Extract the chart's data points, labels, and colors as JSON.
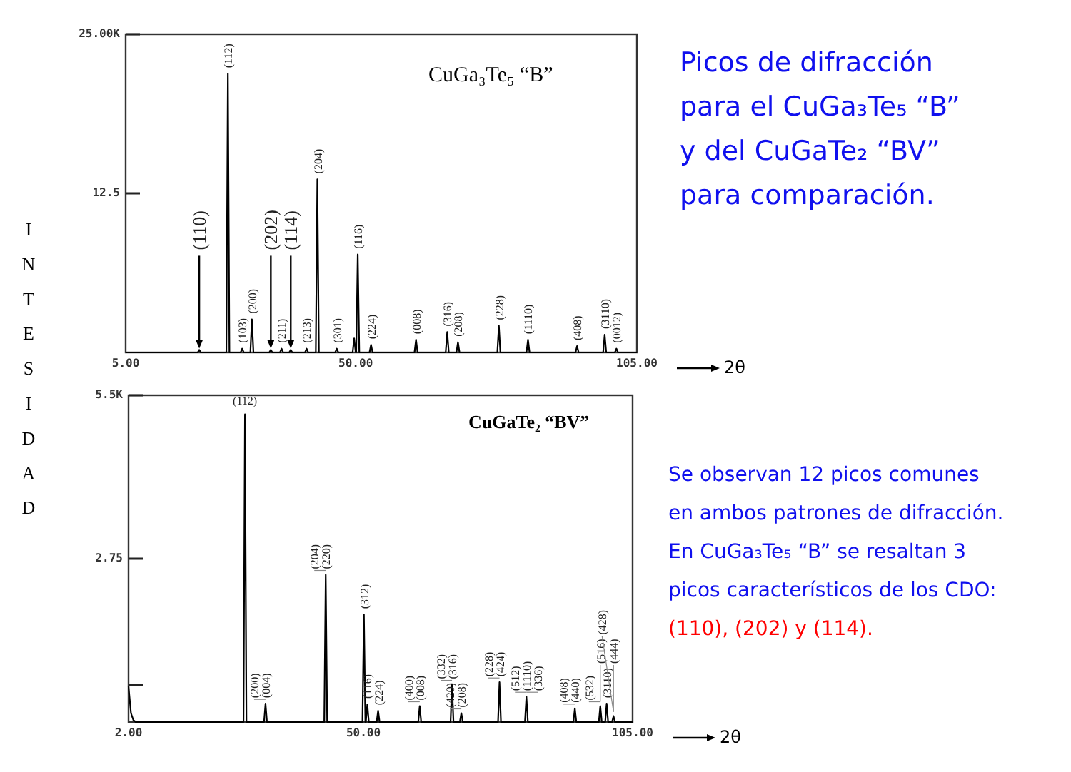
{
  "chart_data": [
    {
      "type": "line",
      "title": "CuGa₃Te₅ “B”",
      "xlabel": "2θ",
      "ylabel": "INTESIDAD",
      "xlim": [
        5,
        105
      ],
      "xticks": [
        {
          "value": 5,
          "label": "5.00"
        },
        {
          "value": 50,
          "label": "50.00"
        },
        {
          "value": 105,
          "label": "105.00"
        }
      ],
      "ylim": [
        0,
        25
      ],
      "yticks": [
        {
          "value": 25,
          "label": "25.00K"
        },
        {
          "value": 12.5,
          "label": "12.5"
        }
      ],
      "grid": false,
      "series": [
        {
          "color": "#000000",
          "x": [
            5,
            19.1,
            19.4,
            19.7,
            24.7,
            25,
            25.3,
            27.5,
            27.8,
            28.1,
            29.4,
            29.7,
            30,
            33.1,
            33.4,
            33.7,
            35.2,
            35.5,
            35.8,
            37,
            37.3,
            37.6,
            40.1,
            40.4,
            40.7,
            42.2,
            42.5,
            42.8,
            46,
            46.3,
            46.6,
            49.4,
            49.7,
            50,
            50.1,
            50.4,
            50.7,
            52.7,
            53,
            53.3,
            61.5,
            61.8,
            62.1,
            67.6,
            67.9,
            68.2,
            69.7,
            70,
            70.3,
            77.7,
            78,
            78.3,
            83.4,
            83.7,
            84,
            93,
            93.3,
            93.6,
            98.4,
            98.7,
            99,
            100.7,
            101,
            101.3,
            105
          ],
          "values": [
            0,
            0,
            0.2,
            0,
            0,
            21.9,
            0,
            0,
            0.3,
            0,
            0,
            2.6,
            0,
            0,
            0.2,
            0,
            0,
            0.3,
            0,
            0,
            0.2,
            0,
            0,
            0.3,
            0,
            0,
            13.6,
            0,
            0,
            0.3,
            0,
            0,
            1.1,
            0,
            0,
            7.7,
            0,
            0,
            0.6,
            0,
            0,
            1,
            0,
            0,
            1.6,
            0,
            0,
            0.8,
            0,
            0,
            2.1,
            0,
            0,
            1,
            0,
            0,
            0.5,
            0,
            0,
            1.4,
            0,
            0,
            0.3,
            0,
            0
          ]
        }
      ],
      "annotations": [
        {
          "text": "(110)",
          "x": 19.4,
          "y": 0.2
        },
        {
          "text": "(112)",
          "x": 25,
          "y": 21.9
        },
        {
          "text": "(103)",
          "x": 27.8,
          "y": 0.3
        },
        {
          "text": "(200)",
          "x": 29.7,
          "y": 2.6
        },
        {
          "text": "(202)",
          "x": 33.4,
          "y": 0.2
        },
        {
          "text": "(211)",
          "x": 35.5,
          "y": 0.3
        },
        {
          "text": "(114)",
          "x": 37.3,
          "y": 0.2
        },
        {
          "text": "(213)",
          "x": 40.4,
          "y": 0.3
        },
        {
          "text": "(204)",
          "x": 42.5,
          "y": 13.6
        },
        {
          "text": "(301)",
          "x": 46.3,
          "y": 0.3
        },
        {
          "text": "(116)",
          "x": 50.4,
          "y": 7.7
        },
        {
          "text": "(224)",
          "x": 53,
          "y": 0.6
        },
        {
          "text": "(008)",
          "x": 61.8,
          "y": 1
        },
        {
          "text": "(316)",
          "x": 67.9,
          "y": 1.6
        },
        {
          "text": "(208)",
          "x": 70,
          "y": 0.8
        },
        {
          "text": "(228)",
          "x": 78,
          "y": 2.1
        },
        {
          "text": "(1110)",
          "x": 83.7,
          "y": 1
        },
        {
          "text": "(408)",
          "x": 93.3,
          "y": 0.5
        },
        {
          "text": "(3110)",
          "x": 98.7,
          "y": 1.4
        },
        {
          "text": "(0012)",
          "x": 101,
          "y": 0.3
        },
        "Picos de difracción",
        "para el CuGa₃Te₅ “B”",
        "y del CuGaTe₂ “BV”",
        "para comparación."
      ]
    },
    {
      "type": "line",
      "title": "CuGaTe₂ “BV”",
      "xlabel": "2θ",
      "xlim": [
        2,
        105
      ],
      "xticks": [
        {
          "value": 2,
          "label": "2.00"
        },
        {
          "value": 50,
          "label": "50.00"
        },
        {
          "value": 105,
          "label": "105.00"
        }
      ],
      "ylim": [
        0,
        5.5
      ],
      "yticks": [
        {
          "value": 5.5,
          "label": "5.5K"
        },
        {
          "value": 2.75,
          "label": "2.75"
        },
        {
          "value": 0.63,
          "label": null
        }
      ],
      "grid": false,
      "series": [
        {
          "color": "#000000",
          "x": [
            2,
            2.5,
            3,
            3.5,
            25.5,
            25.8,
            26.1,
            29.7,
            30,
            30.3,
            42,
            42.3,
            42.6,
            49.8,
            50.1,
            50.4,
            50.5,
            50.8,
            51.1,
            52.7,
            53,
            53.3,
            61.2,
            61.5,
            61.8,
            67.8,
            68.1,
            68.4,
            69.7,
            70,
            70.3,
            77.5,
            77.8,
            78.1,
            83,
            83.3,
            83.6,
            92.9,
            93.2,
            93.5,
            98.1,
            98.4,
            98.7,
            99.4,
            99.7,
            100,
            100.8,
            101.1,
            101.4,
            105
          ],
          "values": [
            0.6,
            0.15,
            0.03,
            0,
            0,
            5.18,
            0,
            0,
            0.31,
            0,
            0,
            2.48,
            0,
            0,
            1.81,
            0,
            0,
            0.3,
            0,
            0,
            0.19,
            0,
            0,
            0.27,
            0,
            0,
            0.63,
            0,
            0,
            0.15,
            0,
            0,
            0.67,
            0,
            0,
            0.43,
            0,
            0,
            0.23,
            0,
            0,
            0.27,
            0,
            0,
            0.31,
            0,
            0,
            0.1,
            0,
            0
          ]
        }
      ],
      "annotations": [
        {
          "text": "(112)",
          "x": 25.8,
          "y": 5.18
        },
        {
          "text": "(004)",
          "x": 30,
          "y": 0.31
        },
        {
          "text": "(200)",
          "x": 30,
          "y": 0.31
        },
        {
          "text": "(220)",
          "x": 42.3,
          "y": 2.48
        },
        {
          "text": "(204)",
          "x": 42.3,
          "y": 2.48
        },
        {
          "text": "(116)",
          "x": 50.8,
          "y": 0.3
        },
        {
          "text": "(312)",
          "x": 50.1,
          "y": 1.81
        },
        {
          "text": "(224)",
          "x": 53,
          "y": 0.19
        },
        {
          "text": "(008)",
          "x": 61.5,
          "y": 0.27
        },
        {
          "text": "(400)",
          "x": 61.5,
          "y": 0.27
        },
        {
          "text": "(316)",
          "x": 68.1,
          "y": 0.63
        },
        {
          "text": "(332)",
          "x": 68.1,
          "y": 0.63
        },
        {
          "text": "(208)",
          "x": 70,
          "y": 0.15
        },
        {
          "text": "(420)",
          "x": 70,
          "y": 0.15
        },
        {
          "text": "(424)",
          "x": 77.8,
          "y": 0.67
        },
        {
          "text": "(228)",
          "x": 77.8,
          "y": 0.67
        },
        {
          "text": "(1110)",
          "x": 83.3,
          "y": 0.43
        },
        {
          "text": "(512)",
          "x": 83.3,
          "y": 0.43
        },
        {
          "text": "(336)",
          "x": 83.3,
          "y": 0.43
        },
        {
          "text": "(440)",
          "x": 93.2,
          "y": 0.23
        },
        {
          "text": "(408)",
          "x": 93.2,
          "y": 0.23
        },
        {
          "text": "(3110)",
          "x": 99.7,
          "y": 0.31
        },
        {
          "text": "(516)",
          "x": 98.4,
          "y": 0.27
        },
        {
          "text": "(532)",
          "x": 98.4,
          "y": 0.27
        },
        {
          "text": "(444)",
          "x": 101.1,
          "y": 0.1
        },
        {
          "text": "(428)",
          "x": 101.1,
          "y": 0.1
        },
        "Se observan 12 picos comunes",
        "en ambos patrones de difracción.",
        "En CuGa₃Te₅ “B” se resaltan 3",
        "picos característicos de los CDO:",
        "(110), (202) y (114)."
      ]
    }
  ]
}
